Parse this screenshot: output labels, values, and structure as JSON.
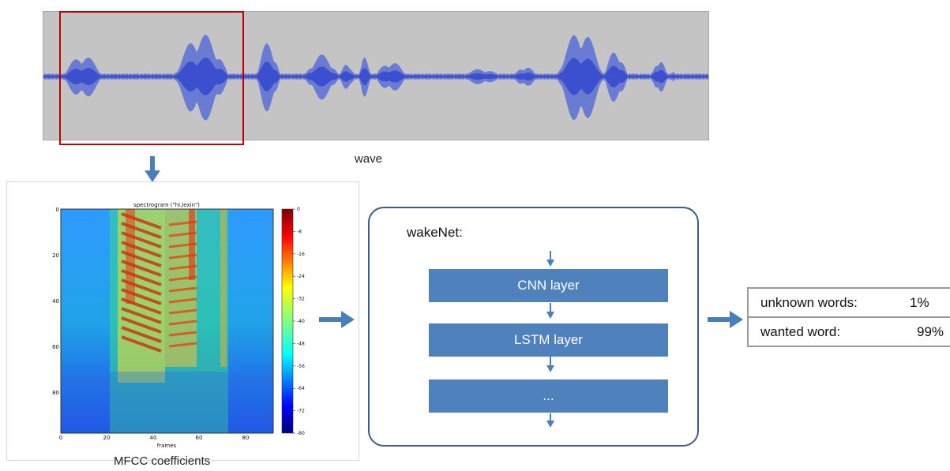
{
  "wave": {
    "label": "wave"
  },
  "spectrogram": {
    "title": "spectrogram (\"hi,lexin\")",
    "xlabel": "frames",
    "x_ticks": [
      "0",
      "20",
      "40",
      "60",
      "80"
    ],
    "y_ticks": [
      "0",
      "20",
      "40",
      "60",
      "80"
    ],
    "colorbar_ticks": [
      "0",
      "-8",
      "-16",
      "-24",
      "-32",
      "-40",
      "-48",
      "-56",
      "-64",
      "-72",
      "-80"
    ],
    "caption": "MFCC coefficients"
  },
  "wakenet": {
    "title": "wakeNet:",
    "layers": [
      "CNN layer",
      "LSTM layer",
      "..."
    ]
  },
  "output": {
    "rows": [
      {
        "label": "unknown words:",
        "value": "1%"
      },
      {
        "label": "wanted word:",
        "value": "99%"
      }
    ]
  },
  "colors": {
    "arrow": "#4a7ebb",
    "layer_fill": "#4f81bd",
    "box_border": "#3e5d80",
    "selection": "#c00000",
    "wave_fill": "#5b6fd6",
    "wave_bg": "#c4c4c4"
  }
}
